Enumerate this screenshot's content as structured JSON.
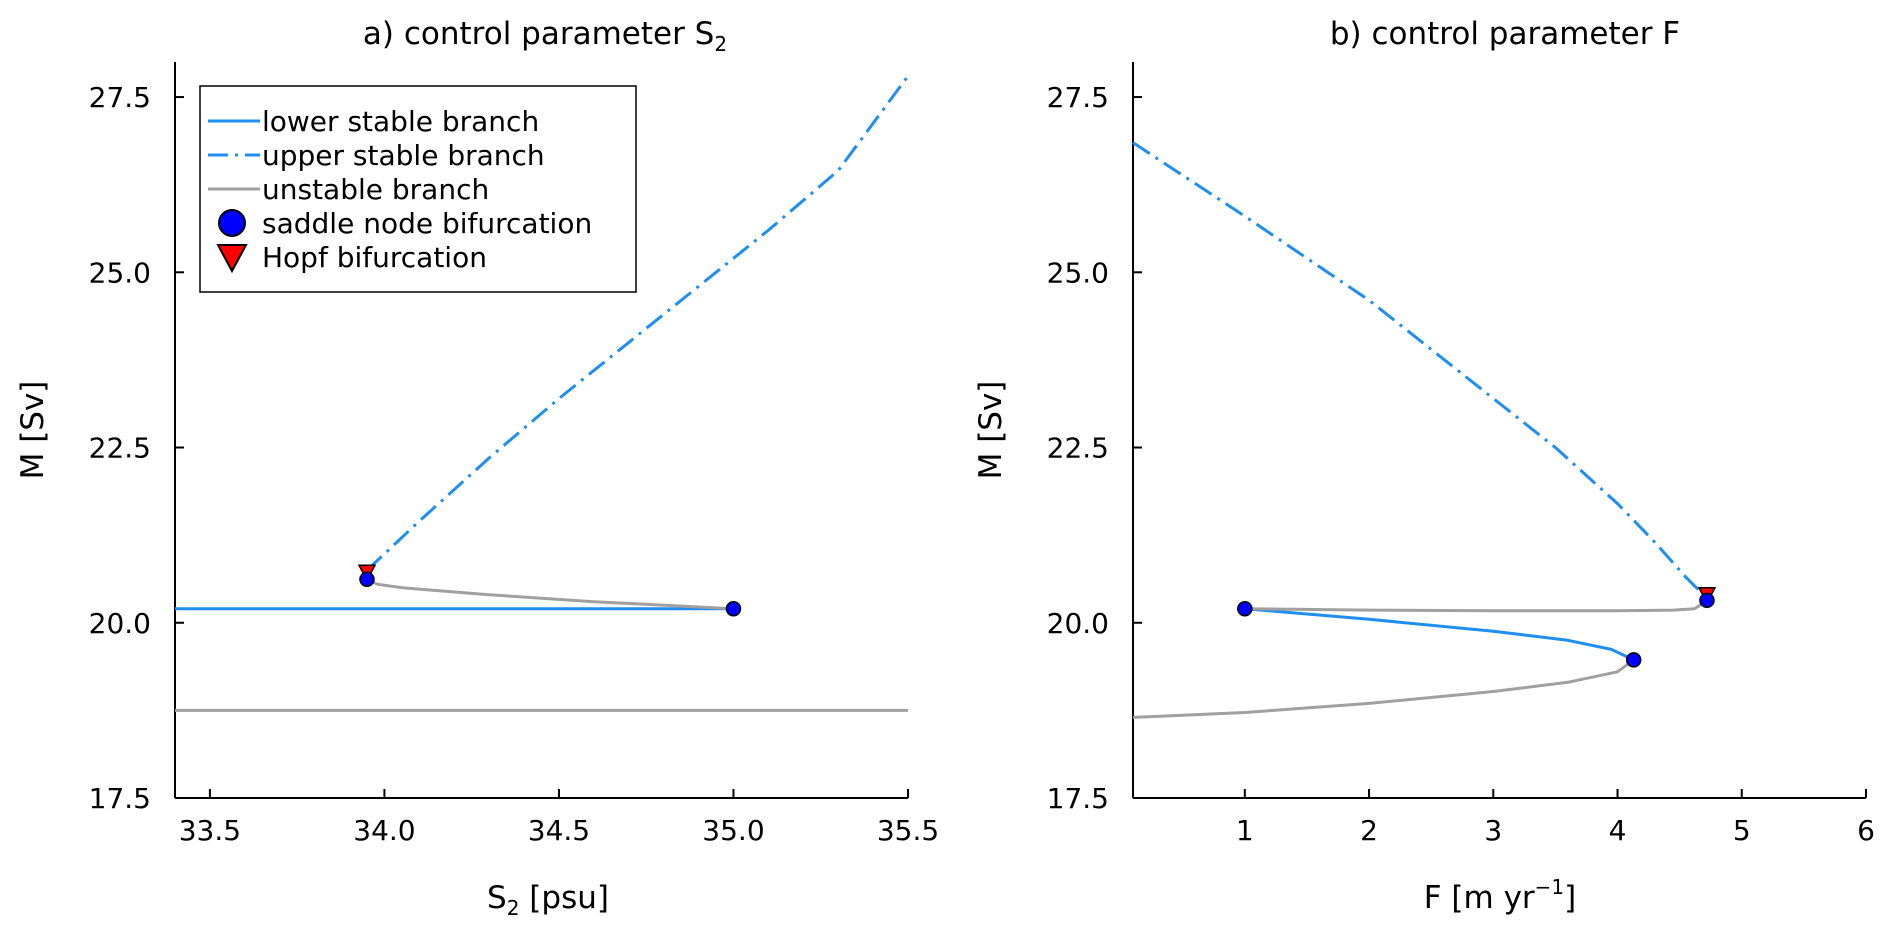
{
  "chart_data": [
    {
      "type": "line",
      "title": "a) control parameter S",
      "title_subscript": "2",
      "xlabel": "S",
      "xlabel_subscript": "2",
      "xlabel_suffix": " [psu]",
      "ylabel": "M [Sv]",
      "xlim": [
        33.4,
        35.5
      ],
      "ylim": [
        17.5,
        28.0
      ],
      "xticks": [
        "33.5",
        "34.0",
        "34.5",
        "35.0",
        "35.5"
      ],
      "yticks": [
        "17.5",
        "20.0",
        "22.5",
        "25.0",
        "27.5"
      ],
      "legend": {
        "position": "top-left",
        "entries": [
          {
            "label": "lower stable branch",
            "kind": "solid"
          },
          {
            "label": "upper stable branch",
            "kind": "dashdot"
          },
          {
            "label": "unstable branch",
            "kind": "gray"
          },
          {
            "label": "saddle node bifurcation",
            "kind": "circle"
          },
          {
            "label": "Hopf bifurcation",
            "kind": "triangle"
          }
        ]
      },
      "series": [
        {
          "name": "lower stable branch",
          "style": "solid",
          "x": [
            33.4,
            35.0
          ],
          "y": [
            20.2,
            20.2
          ]
        },
        {
          "name": "upper stable branch",
          "style": "dashdot",
          "x": [
            33.95,
            34.1,
            34.3,
            34.5,
            34.7,
            34.9,
            35.1,
            35.3,
            35.5
          ],
          "y": [
            20.75,
            21.45,
            22.35,
            23.2,
            24.0,
            24.8,
            25.6,
            26.45,
            27.8
          ]
        },
        {
          "name": "unstable branch",
          "style": "gray",
          "x": [
            33.95,
            33.98,
            34.05,
            34.3,
            34.6,
            35.0
          ],
          "y": [
            20.62,
            20.55,
            20.5,
            20.4,
            20.3,
            20.2
          ]
        },
        {
          "name": "unstable branch",
          "style": "gray",
          "x": [
            33.4,
            35.5
          ],
          "y": [
            18.75,
            18.75
          ]
        }
      ],
      "saddle_points": [
        {
          "x": 33.95,
          "y": 20.62
        },
        {
          "x": 35.0,
          "y": 20.2
        }
      ],
      "hopf_points": [
        {
          "x": 33.95,
          "y": 20.72
        }
      ]
    },
    {
      "type": "line",
      "title": "b) control parameter F",
      "xlabel": "F [m yr",
      "xlabel_superscript": "−1",
      "xlabel_suffix": "]",
      "ylabel": "M [Sv]",
      "xlim": [
        0.1,
        6.0
      ],
      "ylim": [
        17.5,
        28.0
      ],
      "xticks": [
        "1",
        "2",
        "3",
        "4",
        "5",
        "6"
      ],
      "yticks": [
        "17.5",
        "20.0",
        "22.5",
        "25.0",
        "27.5"
      ],
      "series": [
        {
          "name": "upper stable branch",
          "style": "dashdot",
          "x": [
            0.1,
            1.0,
            2.0,
            3.0,
            3.5,
            4.0,
            4.3,
            4.55,
            4.72
          ],
          "y": [
            26.85,
            25.8,
            24.6,
            23.2,
            22.5,
            21.7,
            21.15,
            20.65,
            20.35
          ]
        },
        {
          "name": "lower stable branch",
          "style": "solid",
          "x": [
            1.0,
            2.0,
            3.0,
            3.6,
            3.95,
            4.13
          ],
          "y": [
            20.2,
            20.05,
            19.88,
            19.75,
            19.62,
            19.47
          ]
        },
        {
          "name": "unstable branch",
          "style": "gray",
          "x": [
            1.0,
            2.0,
            3.0,
            4.0,
            4.45,
            4.62,
            4.72
          ],
          "y": [
            20.2,
            20.18,
            20.17,
            20.17,
            20.18,
            20.2,
            20.32
          ]
        },
        {
          "name": "unstable branch",
          "style": "gray",
          "x": [
            0.1,
            1.0,
            2.0,
            3.0,
            3.6,
            4.0,
            4.13
          ],
          "y": [
            18.65,
            18.72,
            18.85,
            19.02,
            19.15,
            19.3,
            19.47
          ]
        }
      ],
      "saddle_points": [
        {
          "x": 1.0,
          "y": 20.2
        },
        {
          "x": 4.13,
          "y": 19.47
        },
        {
          "x": 4.72,
          "y": 20.32
        }
      ],
      "hopf_points": [
        {
          "x": 4.72,
          "y": 20.4
        }
      ]
    }
  ],
  "colors": {
    "stable": "#1f8ef1",
    "unstable": "#a0a0a0",
    "saddle_fill": "#0000ff",
    "hopf_fill": "#ff0000",
    "axis": "#000000"
  }
}
